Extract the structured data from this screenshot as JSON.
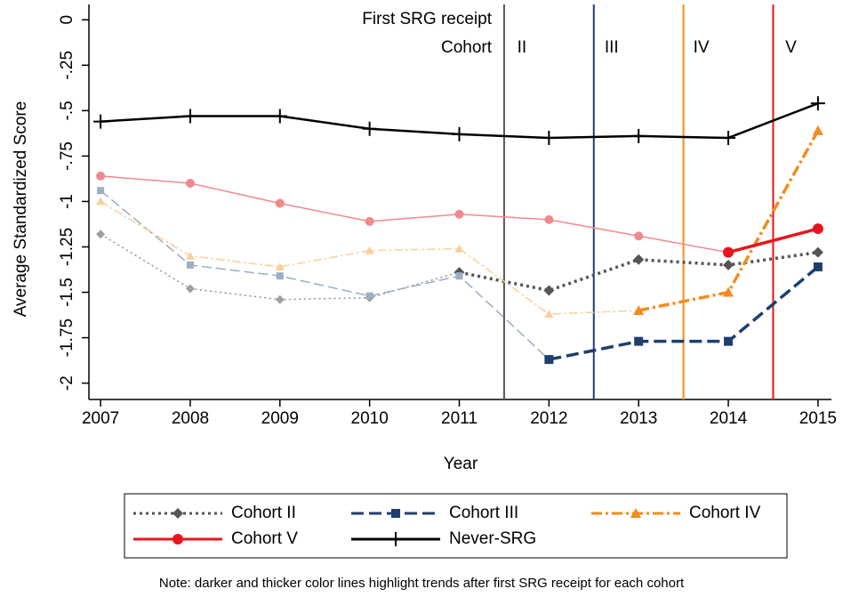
{
  "chart_data": {
    "type": "line",
    "y_label": "Average Standardized Score",
    "x_label": "Year",
    "annotation_top": "First SRG receipt",
    "annotation_cohort": "Cohort",
    "note": "Note: darker and thicker color lines highlight trends after first SRG receipt for each cohort",
    "x": [
      2007,
      2008,
      2009,
      2010,
      2011,
      2012,
      2013,
      2014,
      2015
    ],
    "xlim": [
      2006.87,
      2015.15
    ],
    "xticks": [
      2007,
      2008,
      2009,
      2010,
      2011,
      2012,
      2013,
      2014,
      2015
    ],
    "ylim": [
      -2.09,
      0.06
    ],
    "yticks": [
      0,
      {
        "value": -0.25,
        "label": "-.25"
      },
      {
        "value": -0.5,
        "label": "-.5"
      },
      {
        "value": -0.75,
        "label": "-.75"
      },
      -1,
      -1.25,
      -1.5,
      -1.75,
      -2
    ],
    "series": [
      {
        "name": "Cohort II",
        "color": "#555555",
        "faded_color": "#a0a0a0",
        "dash": "3 4",
        "marker": "diamond",
        "receipt_line": {
          "x": 2011.5,
          "label": "II",
          "color": "#555555"
        },
        "values": [
          -1.18,
          -1.48,
          -1.54,
          -1.53,
          -1.39,
          -1.49,
          -1.32,
          -1.35,
          -1.28
        ]
      },
      {
        "name": "Cohort III",
        "color": "#1f3f6e",
        "faded_color": "#9aaec4",
        "dash": "14 6",
        "marker": "square",
        "receipt_line": {
          "x": 2012.5,
          "label": "III",
          "color": "#1f3f6e"
        },
        "values": [
          -0.94,
          -1.35,
          -1.41,
          -1.52,
          -1.41,
          -1.87,
          -1.77,
          -1.77,
          -1.36
        ]
      },
      {
        "name": "Cohort IV",
        "color": "#f28c1e",
        "faded_color": "#f9cf9c",
        "dash": "12 4 3 4",
        "marker": "triangle",
        "receipt_line": {
          "x": 2013.5,
          "label": "IV",
          "color": "#f28c1e"
        },
        "values": [
          -1.0,
          -1.3,
          -1.36,
          -1.27,
          -1.26,
          -1.62,
          -1.6,
          -1.5,
          -0.61
        ]
      },
      {
        "name": "Cohort V",
        "color": "#e8141c",
        "faded_color": "#f0898f",
        "dash": "none",
        "marker": "circle",
        "receipt_line": {
          "x": 2014.5,
          "label": "V",
          "color": "#e8141c"
        },
        "values": [
          -0.86,
          -0.9,
          -1.01,
          -1.11,
          -1.07,
          -1.1,
          -1.19,
          -1.28,
          -1.15
        ]
      },
      {
        "name": "Never-SRG",
        "color": "#000000",
        "dash": "none",
        "marker": "plus",
        "values": [
          -0.56,
          -0.53,
          -0.53,
          -0.6,
          -0.63,
          -0.65,
          -0.64,
          -0.65,
          -0.46
        ]
      }
    ]
  }
}
